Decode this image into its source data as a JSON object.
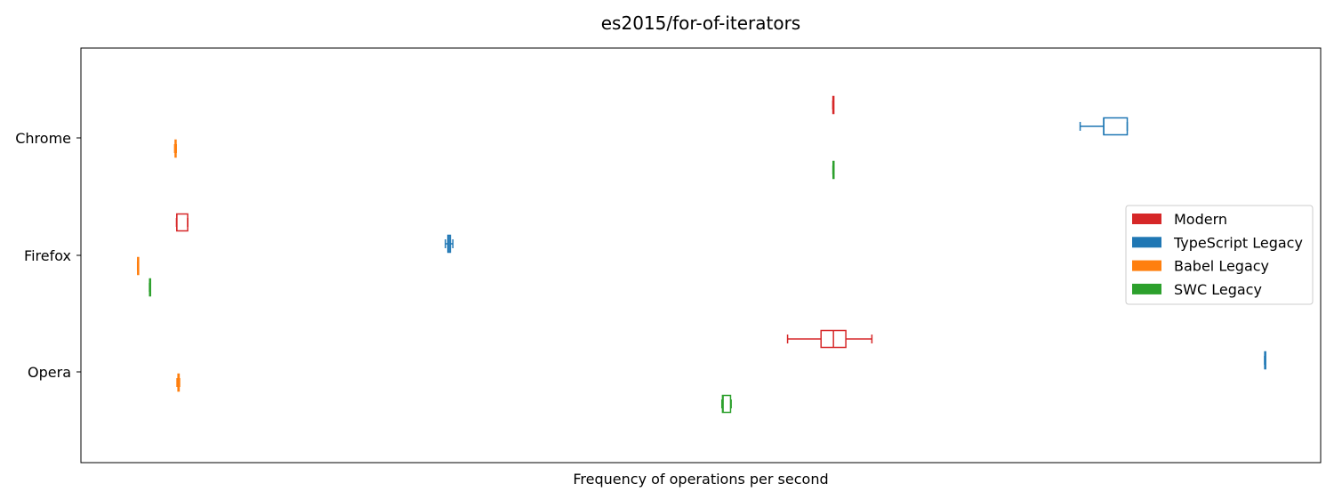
{
  "chart_data": {
    "type": "boxplot",
    "orientation": "horizontal",
    "title": "es2015/for-of-iterators",
    "xlabel": "Frequency of operations per second",
    "ylabel": "",
    "x_ticks_shown": false,
    "xlim": [
      0,
      1000
    ],
    "grid": false,
    "legend_position": "center-right",
    "categories": [
      "Chrome",
      "Firefox",
      "Opera"
    ],
    "series": [
      {
        "name": "Modern",
        "color": "#d62728",
        "boxes": [
          {
            "category": "Chrome",
            "whislo": 606.5,
            "q1": 606.6,
            "med": 606.7,
            "q3": 606.8,
            "whishi": 607.0
          },
          {
            "category": "Firefox",
            "whislo": 77.1,
            "q1": 77.3,
            "med": 77.4,
            "q3": 86.1,
            "whishi": 86.1
          },
          {
            "category": "Opera",
            "whislo": 570.0,
            "q1": 597.0,
            "med": 607.0,
            "q3": 617.0,
            "whishi": 638.0
          }
        ]
      },
      {
        "name": "TypeScript Legacy",
        "color": "#1f77b4",
        "boxes": [
          {
            "category": "Chrome",
            "whislo": 806.0,
            "q1": 825.0,
            "med": 825.0,
            "q3": 844.0,
            "whishi": 844.0
          },
          {
            "category": "Firefox",
            "whislo": 294.0,
            "q1": 296.0,
            "med": 297.0,
            "q3": 298.0,
            "whishi": 300.0
          },
          {
            "category": "Opera",
            "whislo": 954.8,
            "q1": 954.9,
            "med": 955.0,
            "q3": 955.1,
            "whishi": 955.2
          }
        ]
      },
      {
        "name": "Babel Legacy",
        "color": "#ff7f0e",
        "boxes": [
          {
            "category": "Chrome",
            "whislo": 75.6,
            "q1": 76.0,
            "med": 76.3,
            "q3": 76.6,
            "whishi": 76.9
          },
          {
            "category": "Firefox",
            "whislo": 45.7,
            "q1": 45.8,
            "med": 45.9,
            "q3": 46.0,
            "whishi": 46.1
          },
          {
            "category": "Opera",
            "whislo": 77.5,
            "q1": 78.3,
            "med": 78.5,
            "q3": 79.2,
            "whishi": 79.6
          }
        ]
      },
      {
        "name": "SWC Legacy",
        "color": "#2ca02c",
        "boxes": [
          {
            "category": "Chrome",
            "whislo": 606.6,
            "q1": 606.7,
            "med": 606.8,
            "q3": 606.9,
            "whishi": 607.0
          },
          {
            "category": "Firefox",
            "whislo": 55.3,
            "q1": 55.4,
            "med": 55.5,
            "q3": 55.6,
            "whishi": 55.7
          },
          {
            "category": "Opera",
            "whislo": 517.0,
            "q1": 517.5,
            "med": 518.0,
            "q3": 524.0,
            "whishi": 524.5
          }
        ]
      }
    ]
  }
}
